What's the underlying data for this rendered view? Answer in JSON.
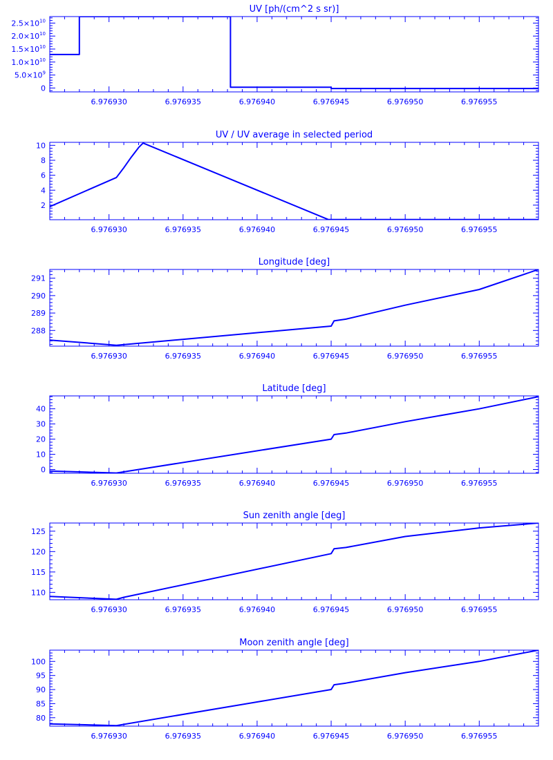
{
  "style": {
    "color": "#0000ff",
    "background": "#ffffff"
  },
  "chart_data": [
    {
      "type": "line",
      "title": "UV [ph/(cm^2 s sr)]",
      "xlim": [
        6.976926,
        6.976959
      ],
      "ylim": [
        -1500000000,
        27500000000
      ],
      "x_ticks": [
        "6.976930",
        "6.976935",
        "6.976940",
        "6.976945",
        "6.976950",
        "6.976955"
      ],
      "y_ticks": [
        {
          "value": 25000000000,
          "mantissa": "2.5",
          "exp": "10"
        },
        {
          "value": 20000000000,
          "mantissa": "2.0",
          "exp": "10"
        },
        {
          "value": 15000000000,
          "mantissa": "1.5",
          "exp": "10"
        },
        {
          "value": 10000000000,
          "mantissa": "1.0",
          "exp": "10"
        },
        {
          "value": 5000000000,
          "mantissa": "5.0",
          "exp": "9"
        },
        {
          "value": 0,
          "mantissa": "0",
          "exp": ""
        }
      ],
      "series": [
        {
          "x": [
            6.976926,
            6.976928,
            6.976928,
            6.9769382,
            6.9769382,
            6.976945,
            6.976945,
            6.976959
          ],
          "y": [
            12900000000,
            12900000000,
            27500000000,
            27500000000,
            300000000,
            300000000,
            -200000000,
            -200000000
          ]
        }
      ]
    },
    {
      "type": "line",
      "title": "UV / UV average in selected period",
      "xlim": [
        6.976926,
        6.976959
      ],
      "ylim": [
        0.05,
        10.4
      ],
      "x_ticks": [
        "6.976930",
        "6.976935",
        "6.976940",
        "6.976945",
        "6.976950",
        "6.976955"
      ],
      "y_ticks": [
        {
          "value": 10,
          "label": "10"
        },
        {
          "value": 8,
          "label": "8"
        },
        {
          "value": 6,
          "label": "6"
        },
        {
          "value": 4,
          "label": "4"
        },
        {
          "value": 2,
          "label": "2"
        }
      ],
      "series": [
        {
          "x": [
            6.976926,
            6.9769305,
            6.976931,
            6.9769315,
            6.976932,
            6.9769323,
            6.9769448,
            6.976959
          ],
          "y": [
            1.8,
            5.7,
            7.0,
            8.4,
            9.7,
            10.3,
            0.08,
            0.08
          ]
        }
      ]
    },
    {
      "type": "line",
      "title": "Longitude [deg]",
      "xlim": [
        6.976926,
        6.976959
      ],
      "ylim": [
        287.1,
        291.5
      ],
      "x_ticks": [
        "6.976930",
        "6.976935",
        "6.976940",
        "6.976945",
        "6.976950",
        "6.976955"
      ],
      "y_ticks": [
        {
          "value": 291,
          "label": "291"
        },
        {
          "value": 290,
          "label": "290"
        },
        {
          "value": 289,
          "label": "289"
        },
        {
          "value": 288,
          "label": "288"
        }
      ],
      "series": [
        {
          "x": [
            6.976926,
            6.9769305,
            6.976945,
            6.9769452,
            6.976946,
            6.97695,
            6.976955,
            6.976959
          ],
          "y": [
            287.45,
            287.15,
            288.25,
            288.55,
            288.65,
            289.45,
            290.35,
            291.5
          ]
        }
      ]
    },
    {
      "type": "line",
      "title": "Latitude [deg]",
      "xlim": [
        6.976926,
        6.976959
      ],
      "ylim": [
        -2.5,
        48.5
      ],
      "x_ticks": [
        "6.976930",
        "6.976935",
        "6.976940",
        "6.976945",
        "6.976950",
        "6.976955"
      ],
      "y_ticks": [
        {
          "value": 40,
          "label": "40"
        },
        {
          "value": 30,
          "label": "30"
        },
        {
          "value": 20,
          "label": "20"
        },
        {
          "value": 10,
          "label": "10"
        },
        {
          "value": 0,
          "label": "0"
        }
      ],
      "series": [
        {
          "x": [
            6.976926,
            6.9769305,
            6.976945,
            6.9769452,
            6.976946,
            6.97695,
            6.976955,
            6.976959
          ],
          "y": [
            -1.0,
            -2.3,
            20.0,
            23.0,
            24.0,
            31.5,
            40.0,
            48.0
          ]
        }
      ]
    },
    {
      "type": "line",
      "title": "Sun zenith angle [deg]",
      "xlim": [
        6.976926,
        6.976959
      ],
      "ylim": [
        108.2,
        127.0
      ],
      "x_ticks": [
        "6.976930",
        "6.976935",
        "6.976940",
        "6.976945",
        "6.976950",
        "6.976955"
      ],
      "y_ticks": [
        {
          "value": 125,
          "label": "125"
        },
        {
          "value": 120,
          "label": "120"
        },
        {
          "value": 115,
          "label": "115"
        },
        {
          "value": 110,
          "label": "110"
        }
      ],
      "series": [
        {
          "x": [
            6.976926,
            6.9769305,
            6.976931,
            6.976945,
            6.9769452,
            6.976946,
            6.97695,
            6.976955,
            6.976959
          ],
          "y": [
            109.0,
            108.3,
            108.8,
            119.5,
            120.7,
            121.0,
            123.7,
            125.8,
            127.0
          ]
        }
      ]
    },
    {
      "type": "line",
      "title": "Moon zenith angle [deg]",
      "xlim": [
        6.976926,
        6.976959
      ],
      "ylim": [
        77.0,
        104.0
      ],
      "x_ticks": [
        "6.976930",
        "6.976935",
        "6.976940",
        "6.976945",
        "6.976950",
        "6.976955"
      ],
      "y_ticks": [
        {
          "value": 100,
          "label": "100"
        },
        {
          "value": 95,
          "label": "95"
        },
        {
          "value": 90,
          "label": "90"
        },
        {
          "value": 85,
          "label": "85"
        },
        {
          "value": 80,
          "label": "80"
        }
      ],
      "series": [
        {
          "x": [
            6.976926,
            6.9769305,
            6.976945,
            6.9769452,
            6.976946,
            6.97695,
            6.976955,
            6.976959
          ],
          "y": [
            77.8,
            77.2,
            90.0,
            91.7,
            92.3,
            96.0,
            100.0,
            104.0
          ]
        }
      ]
    }
  ]
}
